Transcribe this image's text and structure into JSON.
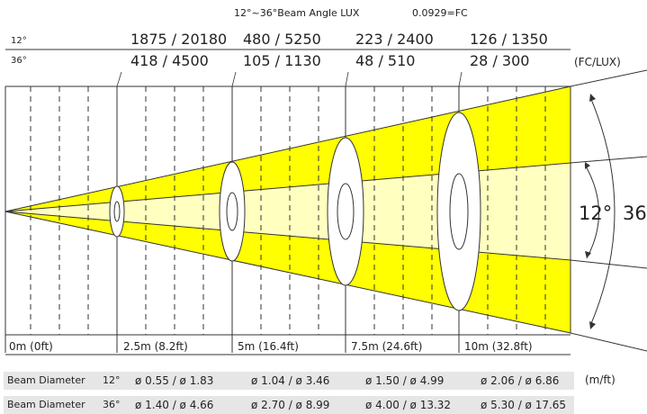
{
  "header": {
    "beam_angle": "12°~36°Beam Angle  LUX",
    "conversion": "0.0929=FC"
  },
  "rows": {
    "row12": {
      "angle": "12°",
      "values": [
        "1875 / 20180",
        "480 / 5250",
        "223 / 2400",
        "126 / 1350"
      ]
    },
    "row36": {
      "angle": "36°",
      "values": [
        "418 / 4500",
        "105 / 1130",
        "48 / 510",
        "28 / 300"
      ],
      "unit": "(FC/LUX)"
    }
  },
  "distances": [
    "0m (0ft)",
    "2.5m (8.2ft)",
    "5m (16.4ft)",
    "7.5m (24.6ft)",
    "10m (32.8ft)"
  ],
  "angle_labels": {
    "inner": "12°",
    "outer": "36"
  },
  "diameters": {
    "label": "Beam Diameter",
    "unit": "(m/ft)",
    "row12": {
      "angle": "12°",
      "values": [
        "ø 0.55 / ø 1.83",
        "ø 1.04 / ø 3.46",
        "ø 1.50 / ø 4.99",
        "ø 2.06 / ø 6.86"
      ]
    },
    "row36": {
      "angle": "36°",
      "values": [
        "ø 1.40 / ø 4.66",
        "ø 2.70 / ø 8.99",
        "ø 4.00 / ø 13.32",
        "ø 5.30 / ø 17.65"
      ]
    }
  },
  "colors": {
    "beam_outer": "#ffff00",
    "beam_inner": "#ffffc0",
    "band": "#e6e6e6"
  }
}
